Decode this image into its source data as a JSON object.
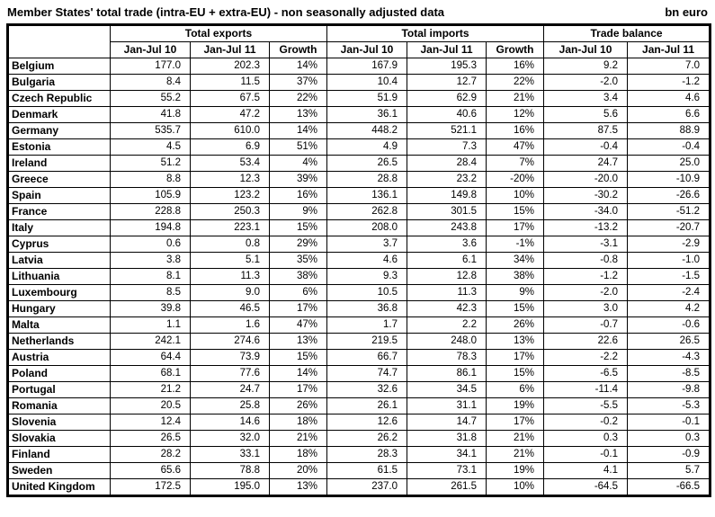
{
  "title": "Member States' total trade (intra-EU + extra-EU) - non seasonally adjusted data",
  "unit": "bn euro",
  "table": {
    "groups": [
      {
        "label": "Total exports"
      },
      {
        "label": "Total imports"
      },
      {
        "label": "Trade balance"
      }
    ],
    "columns": [
      "Jan-Jul 10",
      "Jan-Jul 11",
      "Growth",
      "Jan-Jul 10",
      "Jan-Jul 11",
      "Growth",
      "Jan-Jul 10",
      "Jan-Jul 11"
    ],
    "rows": [
      {
        "country": "Belgium",
        "values": [
          "177.0",
          "202.3",
          "14%",
          "167.9",
          "195.3",
          "16%",
          "9.2",
          "7.0"
        ]
      },
      {
        "country": "Bulgaria",
        "values": [
          "8.4",
          "11.5",
          "37%",
          "10.4",
          "12.7",
          "22%",
          "-2.0",
          "-1.2"
        ]
      },
      {
        "country": "Czech Republic",
        "values": [
          "55.2",
          "67.5",
          "22%",
          "51.9",
          "62.9",
          "21%",
          "3.4",
          "4.6"
        ]
      },
      {
        "country": "Denmark",
        "values": [
          "41.8",
          "47.2",
          "13%",
          "36.1",
          "40.6",
          "12%",
          "5.6",
          "6.6"
        ]
      },
      {
        "country": "Germany",
        "values": [
          "535.7",
          "610.0",
          "14%",
          "448.2",
          "521.1",
          "16%",
          "87.5",
          "88.9"
        ]
      },
      {
        "country": "Estonia",
        "values": [
          "4.5",
          "6.9",
          "51%",
          "4.9",
          "7.3",
          "47%",
          "-0.4",
          "-0.4"
        ]
      },
      {
        "country": "Ireland",
        "values": [
          "51.2",
          "53.4",
          "4%",
          "26.5",
          "28.4",
          "7%",
          "24.7",
          "25.0"
        ]
      },
      {
        "country": "Greece",
        "values": [
          "8.8",
          "12.3",
          "39%",
          "28.8",
          "23.2",
          "-20%",
          "-20.0",
          "-10.9"
        ]
      },
      {
        "country": "Spain",
        "values": [
          "105.9",
          "123.2",
          "16%",
          "136.1",
          "149.8",
          "10%",
          "-30.2",
          "-26.6"
        ]
      },
      {
        "country": "France",
        "values": [
          "228.8",
          "250.3",
          "9%",
          "262.8",
          "301.5",
          "15%",
          "-34.0",
          "-51.2"
        ]
      },
      {
        "country": "Italy",
        "values": [
          "194.8",
          "223.1",
          "15%",
          "208.0",
          "243.8",
          "17%",
          "-13.2",
          "-20.7"
        ]
      },
      {
        "country": "Cyprus",
        "values": [
          "0.6",
          "0.8",
          "29%",
          "3.7",
          "3.6",
          "-1%",
          "-3.1",
          "-2.9"
        ]
      },
      {
        "country": "Latvia",
        "values": [
          "3.8",
          "5.1",
          "35%",
          "4.6",
          "6.1",
          "34%",
          "-0.8",
          "-1.0"
        ]
      },
      {
        "country": "Lithuania",
        "values": [
          "8.1",
          "11.3",
          "38%",
          "9.3",
          "12.8",
          "38%",
          "-1.2",
          "-1.5"
        ]
      },
      {
        "country": "Luxembourg",
        "values": [
          "8.5",
          "9.0",
          "6%",
          "10.5",
          "11.3",
          "9%",
          "-2.0",
          "-2.4"
        ]
      },
      {
        "country": "Hungary",
        "values": [
          "39.8",
          "46.5",
          "17%",
          "36.8",
          "42.3",
          "15%",
          "3.0",
          "4.2"
        ]
      },
      {
        "country": "Malta",
        "values": [
          "1.1",
          "1.6",
          "47%",
          "1.7",
          "2.2",
          "26%",
          "-0.7",
          "-0.6"
        ]
      },
      {
        "country": "Netherlands",
        "values": [
          "242.1",
          "274.6",
          "13%",
          "219.5",
          "248.0",
          "13%",
          "22.6",
          "26.5"
        ]
      },
      {
        "country": "Austria",
        "values": [
          "64.4",
          "73.9",
          "15%",
          "66.7",
          "78.3",
          "17%",
          "-2.2",
          "-4.3"
        ]
      },
      {
        "country": "Poland",
        "values": [
          "68.1",
          "77.6",
          "14%",
          "74.7",
          "86.1",
          "15%",
          "-6.5",
          "-8.5"
        ]
      },
      {
        "country": "Portugal",
        "values": [
          "21.2",
          "24.7",
          "17%",
          "32.6",
          "34.5",
          "6%",
          "-11.4",
          "-9.8"
        ]
      },
      {
        "country": "Romania",
        "values": [
          "20.5",
          "25.8",
          "26%",
          "26.1",
          "31.1",
          "19%",
          "-5.5",
          "-5.3"
        ]
      },
      {
        "country": "Slovenia",
        "values": [
          "12.4",
          "14.6",
          "18%",
          "12.6",
          "14.7",
          "17%",
          "-0.2",
          "-0.1"
        ]
      },
      {
        "country": "Slovakia",
        "values": [
          "26.5",
          "32.0",
          "21%",
          "26.2",
          "31.8",
          "21%",
          "0.3",
          "0.3"
        ]
      },
      {
        "country": "Finland",
        "values": [
          "28.2",
          "33.1",
          "18%",
          "28.3",
          "34.1",
          "21%",
          "-0.1",
          "-0.9"
        ]
      },
      {
        "country": "Sweden",
        "values": [
          "65.6",
          "78.8",
          "20%",
          "61.5",
          "73.1",
          "19%",
          "4.1",
          "5.7"
        ]
      },
      {
        "country": "United Kingdom",
        "values": [
          "172.5",
          "195.0",
          "13%",
          "237.0",
          "261.5",
          "10%",
          "-64.5",
          "-66.5"
        ]
      }
    ]
  }
}
